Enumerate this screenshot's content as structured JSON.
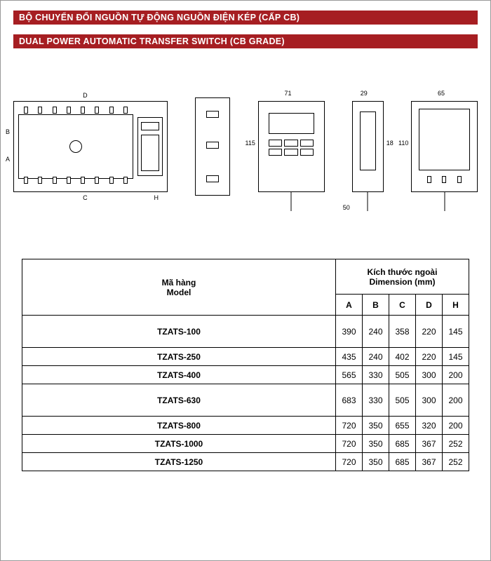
{
  "header": {
    "line1": "BỘ CHUYỂN ĐỔI NGUỒN TỰ ĐỘNG NGUỒN ĐIỆN KÉP (CẤP CB)",
    "line2": "DUAL POWER AUTOMATIC TRANSFER SWITCH (CB GRADE)",
    "band_bg": "#a61e22",
    "band_text_color": "#ffffff"
  },
  "diagrams": {
    "front": {
      "label_left": "B",
      "label_left2": "A",
      "label_bottom": "C",
      "label_bottom2": "H",
      "label_top": "D"
    },
    "side_bracket": {},
    "controller_front": {
      "width_label": "71",
      "height_label": "115"
    },
    "controller_side": {
      "width_label": "29",
      "depth_label": "18",
      "cable_label": "50"
    },
    "controller_back": {
      "width_label": "65",
      "height_label": "110"
    }
  },
  "table": {
    "model_header_vi": "Mã hàng",
    "model_header_en": "Model",
    "dim_header_vi": "Kích thước ngoài",
    "dim_header_en": "Dimension (mm)",
    "columns": [
      "A",
      "B",
      "C",
      "D",
      "H"
    ],
    "rows": [
      {
        "model": "TZATS-100",
        "vals": [
          "390",
          "240",
          "358",
          "220",
          "145"
        ],
        "tall": true
      },
      {
        "model": "TZATS-250",
        "vals": [
          "435",
          "240",
          "402",
          "220",
          "145"
        ],
        "tall": false
      },
      {
        "model": "TZATS-400",
        "vals": [
          "565",
          "330",
          "505",
          "300",
          "200"
        ],
        "tall": false
      },
      {
        "model": "TZATS-630",
        "vals": [
          "683",
          "330",
          "505",
          "300",
          "200"
        ],
        "tall": true
      },
      {
        "model": "TZATS-800",
        "vals": [
          "720",
          "350",
          "655",
          "320",
          "200"
        ],
        "tall": false
      },
      {
        "model": "TZATS-1000",
        "vals": [
          "720",
          "350",
          "685",
          "367",
          "252"
        ],
        "tall": false
      },
      {
        "model": "TZATS-1250",
        "vals": [
          "720",
          "350",
          "685",
          "367",
          "252"
        ],
        "tall": false
      }
    ]
  },
  "colors": {
    "page_bg": "#ffffff",
    "rule": "#000000"
  }
}
